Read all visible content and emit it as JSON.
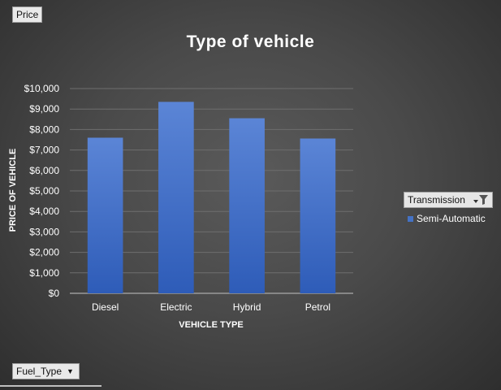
{
  "buttons": {
    "price": "Price",
    "fuel_type": "Fuel_Type"
  },
  "legend": {
    "filter_label": "Transmission",
    "item": "Semi-Automatic"
  },
  "colors": {
    "bar_top": "#5b85d6",
    "bar_bottom": "#2e5cb8",
    "gridline": "#6e6e6e",
    "axis_text": "#ffffff"
  },
  "chart_data": {
    "type": "bar",
    "title": "Type of vehicle",
    "xlabel": "VEHICLE TYPE",
    "ylabel": "PRICE OF VEHICLE",
    "categories": [
      "Diesel",
      "Electric",
      "Hybrid",
      "Petrol"
    ],
    "series": [
      {
        "name": "Semi-Automatic",
        "values": [
          7600,
          9350,
          8550,
          7560
        ]
      }
    ],
    "ylim": [
      0,
      10000
    ],
    "yticks": [
      0,
      1000,
      2000,
      3000,
      4000,
      5000,
      6000,
      7000,
      8000,
      9000,
      10000
    ],
    "ytick_labels": [
      "$0",
      "$1,000",
      "$2,000",
      "$3,000",
      "$4,000",
      "$5,000",
      "$6,000",
      "$7,000",
      "$8,000",
      "$9,000",
      "$10,000"
    ],
    "grid": true,
    "legend_position": "right"
  }
}
